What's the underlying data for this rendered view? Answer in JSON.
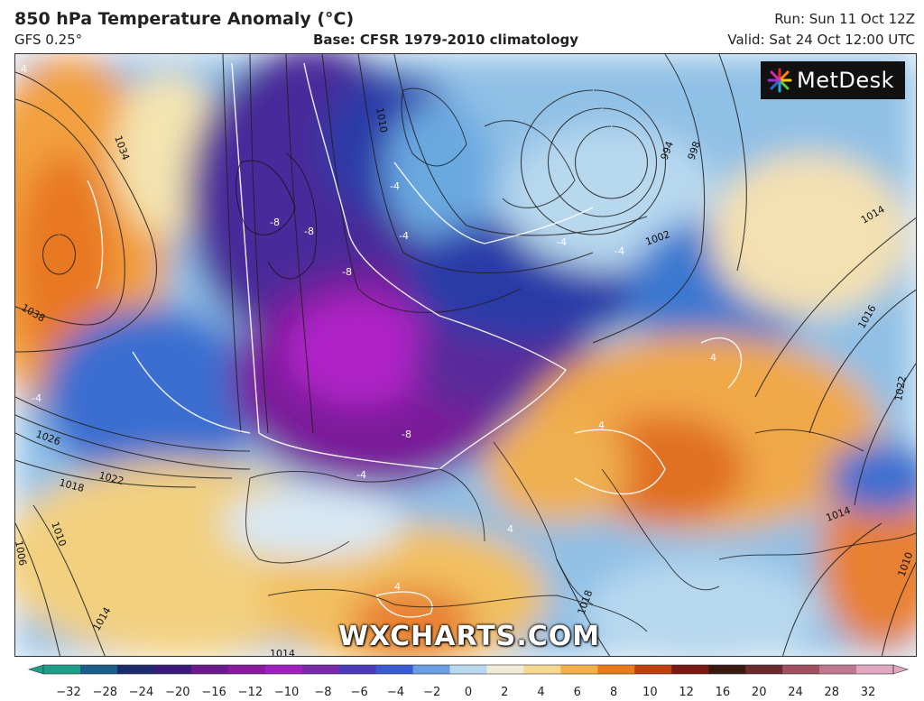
{
  "header": {
    "title": "850 hPa Temperature Anomaly (°C)",
    "model": "GFS 0.25°",
    "base": "Base: CFSR 1979-2010 climatology",
    "run": "Run: Sun 11 Oct 12Z",
    "valid": "Valid: Sat 24 Oct 12:00 UTC"
  },
  "logo": {
    "text": "MetDesk"
  },
  "watermark": "WXCHARTS.COM",
  "isobars": [
    "1034",
    "1038",
    "1026",
    "1022",
    "1018",
    "1010",
    "1006",
    "1014",
    "1010",
    "994",
    "998",
    "1002",
    "1014",
    "1016",
    "1022",
    "1014",
    "1018",
    "1014",
    "1010"
  ],
  "anomaly_labels": [
    "4",
    "-8",
    "-8",
    "-8",
    "-4",
    "-4",
    "-4",
    "-4",
    "-8",
    "-4",
    "4",
    "4",
    "4",
    "-4",
    "4"
  ],
  "colorbar": {
    "ticks": [
      "−32",
      "−28",
      "−24",
      "−20",
      "−16",
      "−12",
      "−10",
      "−8",
      "−6",
      "−4",
      "−2",
      "0",
      "2",
      "4",
      "6",
      "8",
      "10",
      "12",
      "16",
      "20",
      "24",
      "28",
      "32"
    ],
    "colors": [
      "#1e9e8a",
      "#1b5e8c",
      "#1e2a6e",
      "#3a1a7a",
      "#6a1a8a",
      "#8a1aa0",
      "#a020c0",
      "#7a2aa8",
      "#4a3ab8",
      "#3a5ad0",
      "#6a9ee0",
      "#b8d8ee",
      "#f0ecd8",
      "#f6d890",
      "#f4b048",
      "#e87a1a",
      "#c04010",
      "#7a1a10",
      "#3a1a10",
      "#6a2a30",
      "#a05060",
      "#c07890",
      "#e0a8c0"
    ]
  }
}
